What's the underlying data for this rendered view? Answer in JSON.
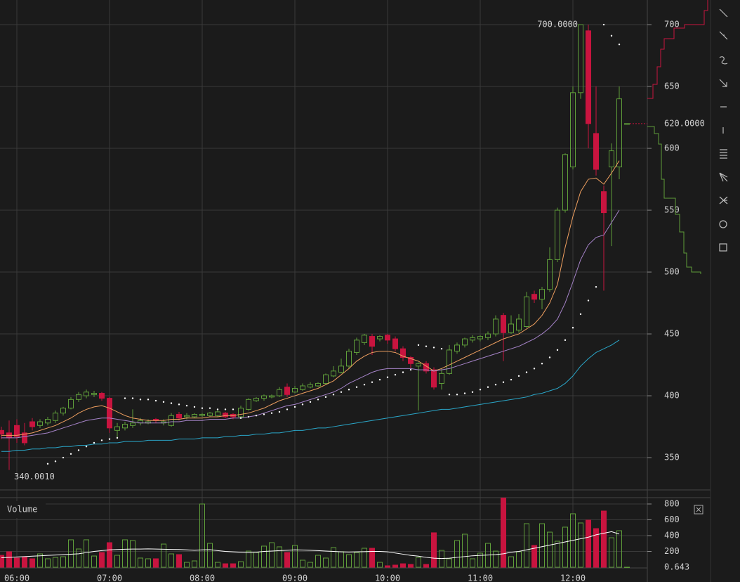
{
  "chart_data": {
    "type": "candlestick",
    "x": [
      "05:50",
      "05:55",
      "06:00",
      "06:05",
      "06:10",
      "06:15",
      "06:20",
      "06:25",
      "06:30",
      "06:35",
      "06:40",
      "06:45",
      "06:50",
      "06:55",
      "07:00",
      "07:05",
      "07:10",
      "07:15",
      "07:20",
      "07:25",
      "07:30",
      "07:35",
      "07:40",
      "07:45",
      "07:50",
      "07:55",
      "08:00",
      "08:05",
      "08:10",
      "08:15",
      "08:20",
      "08:25",
      "08:30",
      "08:35",
      "08:40",
      "08:45",
      "08:50",
      "08:55",
      "09:00",
      "09:05",
      "09:10",
      "09:15",
      "09:20",
      "09:25",
      "09:30",
      "09:35",
      "09:40",
      "09:45",
      "09:50",
      "09:55",
      "10:00",
      "10:05",
      "10:10",
      "10:15",
      "10:20",
      "10:25",
      "10:30",
      "10:35",
      "10:40",
      "10:45",
      "10:50",
      "10:55",
      "11:00",
      "11:05",
      "11:10",
      "11:15",
      "11:20",
      "11:25",
      "11:30",
      "11:35",
      "11:40",
      "11:45",
      "11:50",
      "11:55",
      "12:00",
      "12:05",
      "12:10",
      "12:15",
      "12:20",
      "12:25",
      "12:30",
      "12:35"
    ],
    "open": [
      372,
      370,
      376,
      370,
      379,
      376,
      378,
      380,
      386,
      390,
      397,
      400,
      401,
      402,
      398,
      372,
      374,
      376,
      378,
      378,
      381,
      378,
      376,
      385,
      383,
      383,
      384,
      384,
      384,
      386,
      385,
      383,
      389,
      396,
      398,
      399,
      400,
      407,
      403,
      405,
      407,
      408,
      410,
      416,
      419,
      424,
      435,
      443,
      448,
      446,
      449,
      446,
      438,
      431,
      424,
      426,
      421,
      410,
      418,
      436,
      441,
      445,
      446,
      447,
      450,
      465,
      451,
      453,
      456,
      482,
      478,
      486,
      510,
      550,
      585,
      645,
      695,
      612,
      565,
      585,
      585,
      620
    ],
    "high": [
      375,
      380,
      381,
      378,
      382,
      381,
      383,
      388,
      391,
      399,
      403,
      405,
      404,
      403,
      399,
      378,
      379,
      389,
      382,
      381,
      382,
      381,
      386,
      387,
      386,
      386,
      386,
      387,
      389,
      387,
      386,
      392,
      398,
      399,
      401,
      401,
      407,
      410,
      408,
      410,
      411,
      411,
      418,
      424,
      430,
      438,
      447,
      450,
      450,
      449,
      450,
      448,
      440,
      432,
      427,
      428,
      423,
      422,
      441,
      443,
      447,
      449,
      449,
      452,
      465,
      467,
      465,
      466,
      484,
      485,
      488,
      520,
      552,
      596,
      650,
      700,
      700,
      650,
      570,
      604,
      650,
      620
    ],
    "low": [
      365,
      340.001,
      362,
      360,
      372,
      374,
      376,
      378,
      384,
      389,
      395,
      398,
      399,
      396,
      370,
      365,
      372,
      374,
      376,
      377,
      378,
      376,
      375,
      380,
      381,
      382,
      383,
      383,
      383,
      382,
      381,
      382,
      388,
      395,
      396,
      398,
      399,
      399,
      402,
      404,
      406,
      407,
      409,
      415,
      418,
      422,
      433,
      441,
      433,
      444,
      442,
      436,
      428,
      422,
      388,
      418,
      405,
      405,
      417,
      434,
      439,
      443,
      444,
      445,
      448,
      428,
      450,
      451,
      455,
      475,
      470,
      484,
      508,
      548,
      583,
      640,
      600,
      578,
      485,
      521,
      575,
      620
    ],
    "close": [
      369,
      366,
      367,
      362,
      375,
      379,
      381,
      386,
      390,
      397,
      401,
      403,
      402,
      398,
      374,
      375,
      377,
      378,
      380,
      379,
      380,
      379,
      384,
      382,
      384,
      385,
      385,
      386,
      387,
      383,
      383,
      390,
      397,
      398,
      400,
      400,
      405,
      401,
      406,
      408,
      409,
      410,
      417,
      420,
      424,
      436,
      445,
      449,
      440,
      448,
      445,
      438,
      431,
      426,
      426,
      420,
      407,
      418,
      437,
      441,
      446,
      447,
      448,
      450,
      462,
      451,
      458,
      462,
      480,
      478,
      486,
      510,
      550,
      595,
      645,
      700,
      620,
      583,
      548,
      598,
      640,
      620
    ],
    "up_color": "#5f9e3a",
    "down_color": "#c8143f",
    "overlays": [
      {
        "color": "#f0a060",
        "values": [
          368,
          368,
          368,
          369,
          370,
          372,
          374,
          376,
          379,
          382,
          386,
          389,
          391,
          392,
          390,
          387,
          384,
          382,
          381,
          380,
          380,
          380,
          381,
          381,
          382,
          382,
          382,
          383,
          383,
          384,
          384,
          385,
          386,
          388,
          390,
          393,
          396,
          398,
          400,
          402,
          404,
          406,
          409,
          412,
          417,
          422,
          428,
          432,
          435,
          436,
          436,
          435,
          432,
          430,
          428,
          424,
          420,
          422,
          425,
          428,
          431,
          434,
          437,
          440,
          443,
          446,
          448,
          450,
          454,
          458,
          465,
          475,
          490,
          520,
          545,
          565,
          575,
          576,
          571,
          580,
          590,
          null
        ]
      },
      {
        "color": "#a583c8",
        "values": [
          366,
          366,
          366,
          367,
          368,
          369,
          370,
          372,
          374,
          376,
          378,
          380,
          381,
          382,
          382,
          381,
          380,
          379,
          378,
          378,
          378,
          378,
          379,
          379,
          380,
          380,
          380,
          381,
          381,
          381,
          382,
          382,
          383,
          384,
          386,
          388,
          390,
          392,
          393,
          395,
          397,
          399,
          401,
          403,
          406,
          410,
          413,
          416,
          419,
          421,
          422,
          422,
          422,
          422,
          421,
          421,
          420,
          421,
          422,
          424,
          426,
          428,
          430,
          432,
          434,
          436,
          438,
          440,
          443,
          446,
          450,
          455,
          462,
          475,
          492,
          510,
          522,
          528,
          530,
          540,
          550,
          null
        ]
      },
      {
        "color": "#2aa6c8",
        "values": [
          355,
          355,
          356,
          356,
          357,
          357,
          358,
          358,
          359,
          359,
          360,
          360,
          361,
          361,
          362,
          362,
          363,
          363,
          363,
          364,
          364,
          364,
          364,
          365,
          365,
          365,
          366,
          366,
          366,
          367,
          367,
          368,
          368,
          369,
          369,
          370,
          370,
          371,
          372,
          372,
          373,
          374,
          374,
          375,
          376,
          377,
          378,
          379,
          380,
          381,
          382,
          383,
          384,
          385,
          386,
          387,
          388,
          389,
          389,
          390,
          391,
          392,
          393,
          394,
          395,
          396,
          397,
          398,
          399,
          401,
          402,
          404,
          406,
          410,
          416,
          424,
          430,
          435,
          438,
          441,
          445,
          null
        ]
      }
    ],
    "sar": {
      "color": "#ffffff",
      "values": [
        null,
        null,
        null,
        null,
        null,
        null,
        345,
        347,
        350,
        353,
        356,
        359,
        362,
        364,
        365,
        366,
        398,
        398,
        397,
        397,
        396,
        395,
        394,
        393,
        392,
        391,
        390,
        390,
        389,
        389,
        389,
        382,
        383,
        384,
        385,
        386,
        387,
        389,
        391,
        393,
        395,
        397,
        399,
        401,
        403,
        405,
        407,
        409,
        411,
        413,
        415,
        417,
        419,
        421,
        441,
        440,
        439,
        438,
        401,
        401,
        402,
        403,
        405,
        407,
        409,
        411,
        413,
        416,
        419,
        422,
        426,
        431,
        437,
        445,
        455,
        466,
        477,
        488,
        700,
        691,
        684,
        null
      ]
    },
    "ylim": [
      323.9,
      719.9
    ],
    "yticks": [
      350,
      400,
      450,
      500,
      550,
      600,
      650,
      700
    ],
    "xticks": [
      "06:00",
      "07:00",
      "08:00",
      "09:00",
      "10:00",
      "11:00",
      "12:00"
    ],
    "annotations": [
      {
        "label": "700.0000",
        "value": 700
      },
      {
        "label": "340.0010",
        "value": 340.001
      },
      {
        "label": "620.0000",
        "value": 620
      }
    ],
    "volume": {
      "label": "Volume",
      "values": [
        151,
        196,
        116,
        133,
        107,
        169,
        107,
        124,
        133,
        347,
        231,
        347,
        142,
        187,
        311,
        151,
        347,
        338,
        116,
        107,
        107,
        293,
        169,
        160,
        62,
        80,
        800,
        302,
        62,
        44,
        44,
        71,
        204,
        187,
        267,
        311,
        258,
        187,
        276,
        89,
        62,
        151,
        116,
        249,
        196,
        160,
        187,
        240,
        240,
        62,
        18,
        27,
        44,
        36,
        124,
        36,
        436,
        213,
        107,
        338,
        418,
        107,
        178,
        302,
        204,
        890,
        133,
        196,
        551,
        276,
        551,
        444,
        329,
        507,
        676,
        560,
        596,
        489,
        711,
        373,
        462,
        0.643
      ],
      "value_labels": {
        "81": "0.643"
      },
      "ma": {
        "color": "#ffffff",
        "values": [
          120,
          125,
          130,
          135,
          140,
          145,
          150,
          155,
          160,
          165,
          170,
          185,
          200,
          210,
          220,
          225,
          228,
          230,
          230,
          232,
          230,
          228,
          226,
          225,
          220,
          215,
          220,
          222,
          210,
          200,
          195,
          190,
          185,
          190,
          200,
          205,
          210,
          215,
          220,
          218,
          214,
          210,
          205,
          200,
          195,
          192,
          194,
          197,
          200,
          200,
          195,
          180,
          165,
          150,
          140,
          125,
          115,
          110,
          115,
          125,
          135,
          145,
          150,
          155,
          160,
          170,
          190,
          200,
          220,
          240,
          260,
          280,
          300,
          320,
          340,
          360,
          380,
          410,
          430,
          450,
          420,
          null
        ]
      },
      "ylim": [
        0,
        889
      ],
      "yticks": [
        200,
        400,
        600,
        800
      ]
    }
  }
}
